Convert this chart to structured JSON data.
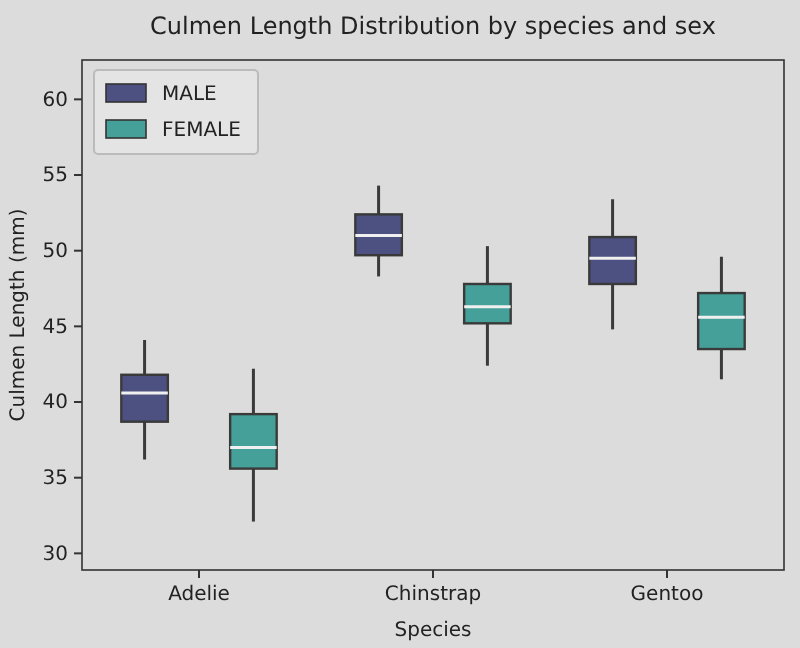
{
  "chart_data": {
    "type": "box",
    "title": "Culmen Length Distribution by species and sex",
    "xlabel": "Species",
    "ylabel": "Culmen Length (mm)",
    "categories": [
      "Adelie",
      "Chinstrap",
      "Gentoo"
    ],
    "ylim": [
      28.9,
      62.6
    ],
    "yticks": [
      30,
      35,
      40,
      45,
      50,
      55,
      60
    ],
    "grid": false,
    "legend": "top left",
    "series": [
      {
        "name": "MALE",
        "color": "#4c5181",
        "boxes": [
          {
            "low": 36.2,
            "q1": 38.7,
            "median": 40.6,
            "q3": 41.8,
            "high": 44.1
          },
          {
            "low": 48.3,
            "q1": 49.7,
            "median": 51.0,
            "q3": 52.4,
            "high": 54.3
          },
          {
            "low": 44.8,
            "q1": 47.8,
            "median": 49.5,
            "q3": 50.9,
            "high": 53.4
          }
        ]
      },
      {
        "name": "FEMALE",
        "color": "#45a09a",
        "boxes": [
          {
            "low": 32.1,
            "q1": 35.6,
            "median": 37.0,
            "q3": 39.2,
            "high": 42.2
          },
          {
            "low": 42.4,
            "q1": 45.2,
            "median": 46.3,
            "q3": 47.8,
            "high": 50.3
          },
          {
            "low": 41.5,
            "q1": 43.5,
            "median": 45.6,
            "q3": 47.2,
            "high": 49.6
          }
        ]
      }
    ]
  }
}
